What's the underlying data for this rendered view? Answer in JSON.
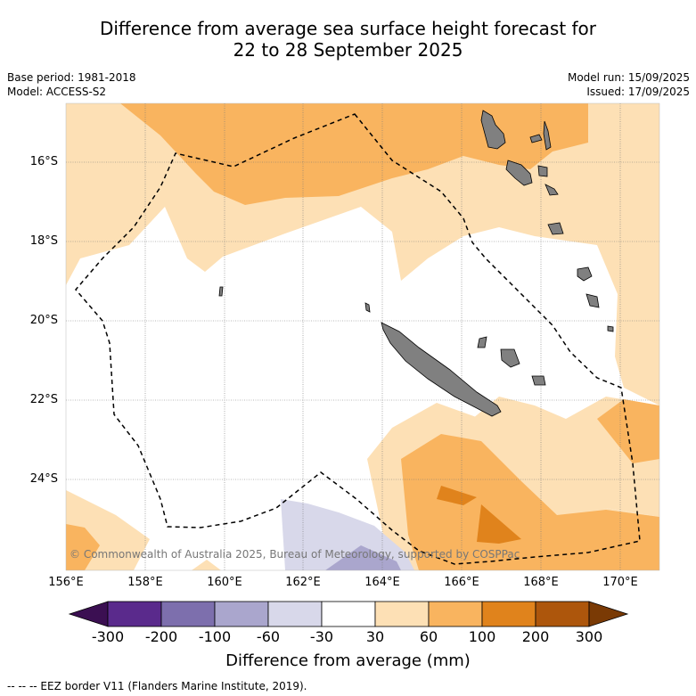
{
  "title": {
    "line1": "Difference from average sea surface height forecast for",
    "line2": "22 to 28 September 2025"
  },
  "meta": {
    "base_period": "Base period: 1981-2018",
    "model": "Model: ACCESS-S2",
    "model_run": "Model run: 15/09/2025",
    "issued": "Issued: 17/09/2025"
  },
  "map": {
    "lat_ticks": [
      "16°S",
      "18°S",
      "20°S",
      "22°S",
      "24°S"
    ],
    "lon_ticks": [
      "156°E",
      "158°E",
      "160°E",
      "162°E",
      "164°E",
      "166°E",
      "168°E",
      "170°E"
    ],
    "copyright": "© Commonwealth of Australia 2025, Bureau of Meteorology, supported by COSPPac",
    "colors": {
      "land": "#808080",
      "c30_60": "#fde0b5",
      "c60_100": "#f9b45f",
      "c100_200": "#e0831c",
      "cm30_m60": "#d8d8ea",
      "cm60_m100": "#aaa6cd",
      "eez_border": "#000000"
    }
  },
  "colorbar": {
    "ticks": [
      "-300",
      "-200",
      "-100",
      "-60",
      "-30",
      "30",
      "60",
      "100",
      "200",
      "300"
    ],
    "colors": [
      "#3b0f52",
      "#5a2a8c",
      "#7d6fad",
      "#aaa6cd",
      "#d8d8ea",
      "#ffffff",
      "#fde0b5",
      "#f9b45f",
      "#e0831c",
      "#ad560c",
      "#7a3a05"
    ],
    "label": "Difference from average (mm)"
  },
  "footnote": "-- -- -- EEZ border V11 (Flanders Marine Institute, 2019)."
}
